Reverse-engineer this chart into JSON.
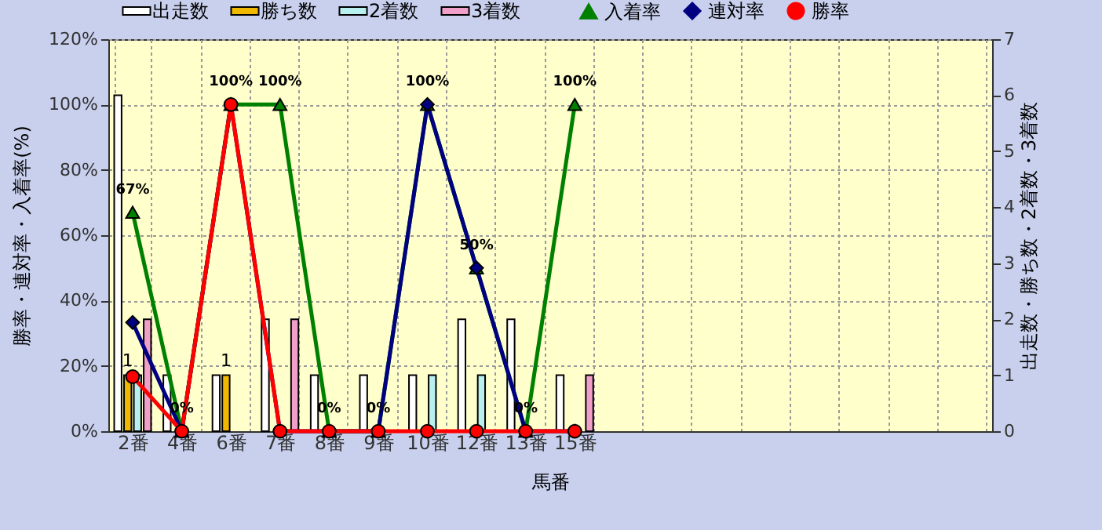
{
  "chart_data": {
    "type": "bar",
    "xlabel": "馬番",
    "ylabel": "勝率・連対率・入着率(%)",
    "y2label": "出走数・勝ち数・2着数・3着数",
    "categories": [
      "2番",
      "4番",
      "6番",
      "7番",
      "8番",
      "9番",
      "10番",
      "12番",
      "13番",
      "15番",
      null,
      null,
      null,
      null,
      null,
      null,
      null,
      null
    ],
    "series": [
      {
        "name": "出走数",
        "axis": "y2",
        "color": "#ffffff",
        "values": [
          6,
          1,
          1,
          2,
          1,
          1,
          1,
          2,
          2,
          1,
          null,
          null,
          null,
          null,
          null,
          null,
          null,
          null
        ]
      },
      {
        "name": "勝ち数",
        "axis": "y2",
        "color": "#f0b800",
        "values": [
          1,
          0,
          1,
          0,
          0,
          0,
          0,
          0,
          0,
          0,
          null,
          null,
          null,
          null,
          null,
          null,
          null,
          null
        ],
        "value_labels": [
          "1",
          null,
          "1",
          null,
          null,
          null,
          null,
          null,
          null,
          null,
          null,
          null,
          null,
          null,
          null,
          null,
          null,
          null
        ]
      },
      {
        "name": "2着数",
        "axis": "y2",
        "color": "#b8f0f0",
        "values": [
          1,
          0,
          0,
          0,
          0,
          0,
          1,
          1,
          0,
          0,
          null,
          null,
          null,
          null,
          null,
          null,
          null,
          null
        ]
      },
      {
        "name": "3着数",
        "axis": "y2",
        "color": "#f0a0c8",
        "values": [
          2,
          0,
          0,
          2,
          0,
          0,
          0,
          0,
          0,
          1,
          null,
          null,
          null,
          null,
          null,
          null,
          null,
          null
        ]
      },
      {
        "name": "入着率",
        "type": "line",
        "color": "#008000",
        "marker": "triangle",
        "values": [
          67,
          0,
          100,
          100,
          0,
          0,
          100,
          50,
          0,
          100,
          null,
          null,
          null,
          null,
          null,
          null,
          null,
          null
        ],
        "value_labels": [
          "67%",
          "0%",
          "100%",
          "100%",
          "0%",
          "0%",
          "100%",
          "50%",
          "0%",
          "100%",
          null,
          null,
          null,
          null,
          null,
          null,
          null,
          null
        ]
      },
      {
        "name": "連対率",
        "type": "line",
        "color": "#000080",
        "marker": "diamond",
        "values": [
          33.3,
          0,
          100,
          0,
          0,
          0,
          100,
          50,
          0,
          0,
          null,
          null,
          null,
          null,
          null,
          null,
          null,
          null
        ]
      },
      {
        "name": "勝率",
        "type": "line",
        "color": "#ff0000",
        "marker": "circle",
        "values": [
          16.7,
          0,
          100,
          0,
          0,
          0,
          0,
          0,
          0,
          0,
          null,
          null,
          null,
          null,
          null,
          null,
          null,
          null
        ]
      }
    ],
    "ylim": [
      0,
      120
    ],
    "yticks": [
      {
        "value": 0,
        "label": "0%"
      },
      {
        "value": 20,
        "label": "20%"
      },
      {
        "value": 40,
        "label": "40%"
      },
      {
        "value": 60,
        "label": "60%"
      },
      {
        "value": 80,
        "label": "80%"
      },
      {
        "value": 100,
        "label": "100%"
      },
      {
        "value": 120,
        "label": "120%"
      }
    ],
    "y2lim": [
      0,
      7
    ],
    "y2ticks": [
      0,
      1,
      2,
      3,
      4,
      5,
      6,
      7
    ],
    "grid": true,
    "legend": "top"
  }
}
